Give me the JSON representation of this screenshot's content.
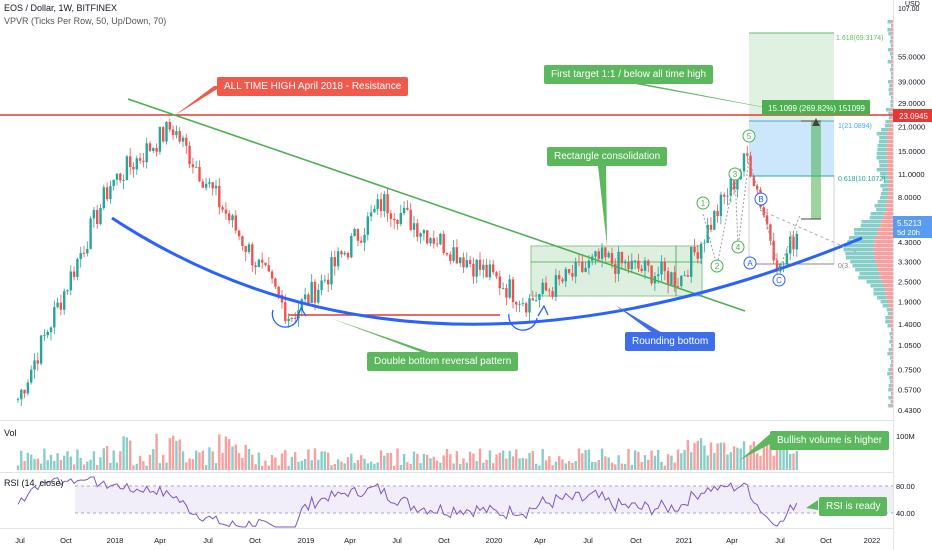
{
  "header": {
    "symbol_line": "EOS / Dollar, 1W, BITFINEX",
    "indicator_line": "VPVR (Ticks Per Row, 50, Up/Down, 70)"
  },
  "callouts": {
    "ath": "ALL TIME HIGH April 2018 - Resistance",
    "first_target": "First target 1:1 / below all time high",
    "rect": "Rectangle consolidation",
    "double_bottom": "Double bottom reversal pattern",
    "rounding": "Rounding bottom",
    "volume": "Bullish volume is higher",
    "rsi": "RSI is ready"
  },
  "fib": {
    "fib_1618": "1.618(69.3174)",
    "fib_1": "1(21.0894)",
    "fib_0618": "0.618(10.1072)",
    "fib_0": "0(3.",
    "measure": "15.1099 (269.82%) 151099"
  },
  "waves": [
    "1",
    "2",
    "3",
    "4",
    "5",
    "A",
    "B",
    "C"
  ],
  "panes": {
    "volume_label": "Vol",
    "volume_scale": "100M",
    "rsi_label": "RSI (14, close)",
    "rsi_levels": [
      "80.00",
      "40.00"
    ]
  },
  "price_axis": {
    "currency": "USD",
    "top_tick": "107.00",
    "ticks": [
      "55.0000",
      "39.0000",
      "29.0000",
      "21.0000",
      "15.0000",
      "11.0000",
      "8.0000",
      "6.0000",
      "4.3000",
      "3.3000",
      "2.5000",
      "1.9000",
      "1.4000",
      "1.0500",
      "0.7500",
      "0.5700",
      "0.4300"
    ],
    "resistance_label": "23.0945",
    "current_label": "5.5213",
    "countdown_label": "5d 20h"
  },
  "time_axis": [
    "Jul",
    "Oct",
    "2018",
    "Apr",
    "Jul",
    "Oct",
    "2019",
    "Apr",
    "Jul",
    "Oct",
    "2020",
    "Apr",
    "Jul",
    "Oct",
    "2021",
    "Apr",
    "Jul",
    "Oct",
    "2022"
  ],
  "colors": {
    "up": "#26a69a",
    "down": "#ef5350",
    "resistance": "#e53935",
    "trendline": "#4caf50",
    "rounding": "#2962ff",
    "rsi_line": "#7e57c2",
    "callout_green": "#5cb85c",
    "callout_red": "#f05a4d",
    "callout_blue": "#3f6fe8"
  },
  "chart_data": {
    "type": "candlestick",
    "title": "EOS / Dollar, 1W, BITFINEX",
    "scale": "log",
    "ylim": [
      0.43,
      107
    ],
    "resistance_level": 23.0945,
    "current_price": 5.5213,
    "key_points": {
      "x": [
        "Jul 2017",
        "Jan 2018",
        "Apr 2018",
        "Dec 2018",
        "Feb 2019",
        "Jun 2019",
        "Mar 2020",
        "Aug 2020",
        "Jan 2021",
        "May 2021",
        "Jul 2021",
        "Aug 2021"
      ],
      "close": [
        0.5,
        9.5,
        21.0,
        1.55,
        2.4,
        7.5,
        1.9,
        3.4,
        2.6,
        14.0,
        2.9,
        5.52
      ]
    },
    "fibonacci_targets": {
      "1.618": 69.3174,
      "1": 21.0894,
      "0.618": 10.1072
    },
    "rsi_levels": [
      80,
      40
    ]
  }
}
